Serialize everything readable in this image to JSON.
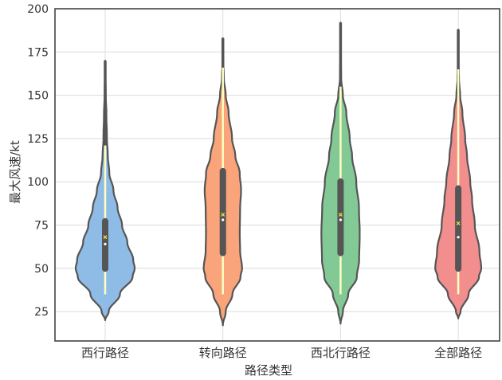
{
  "chart_data": {
    "type": "violin",
    "title": "",
    "xlabel": "路径类型",
    "ylabel": "最大风速/kt",
    "ylim": [
      8,
      200
    ],
    "yticks": [
      25,
      50,
      75,
      100,
      125,
      150,
      175,
      200
    ],
    "grid": true,
    "categories": [
      "西行路径",
      "转向路径",
      "西北行路径",
      "全部路径"
    ],
    "colors": {
      "fills": [
        "#8fbce6",
        "#f9a47a",
        "#82c996",
        "#f28e8e"
      ],
      "outline": "#555555",
      "whisker": "#ffffc0",
      "mean_marker": "#f0e040",
      "median_marker": "#ffffff"
    },
    "series": [
      {
        "name": "西行路径",
        "min": 20,
        "max": 170,
        "whisker_low": 35,
        "whisker_high": 121,
        "q1": 48,
        "q3": 79,
        "median": 64,
        "mean": 68,
        "width_scale": 1.0,
        "density": [
          [
            20,
            0
          ],
          [
            25,
            0.12
          ],
          [
            35,
            0.5
          ],
          [
            45,
            0.93
          ],
          [
            50,
            1.0
          ],
          [
            55,
            0.95
          ],
          [
            65,
            0.75
          ],
          [
            75,
            0.57
          ],
          [
            85,
            0.42
          ],
          [
            95,
            0.28
          ],
          [
            105,
            0.14
          ],
          [
            115,
            0.09
          ],
          [
            125,
            0.06
          ],
          [
            140,
            0.04
          ],
          [
            150,
            0.02
          ],
          [
            160,
            0.01
          ],
          [
            170,
            0
          ]
        ]
      },
      {
        "name": "转向路径",
        "min": 17,
        "max": 183,
        "whisker_low": 35,
        "whisker_high": 166,
        "q1": 57,
        "q3": 108,
        "median": 78,
        "mean": 81,
        "width_scale": 0.65,
        "density": [
          [
            17,
            0
          ],
          [
            25,
            0.15
          ],
          [
            35,
            0.5
          ],
          [
            45,
            0.92
          ],
          [
            50,
            1.0
          ],
          [
            60,
            0.9
          ],
          [
            70,
            0.88
          ],
          [
            85,
            0.9
          ],
          [
            95,
            0.95
          ],
          [
            105,
            0.88
          ],
          [
            115,
            0.65
          ],
          [
            125,
            0.48
          ],
          [
            140,
            0.3
          ],
          [
            150,
            0.15
          ],
          [
            160,
            0.05
          ],
          [
            170,
            0.02
          ],
          [
            183,
            0
          ]
        ]
      },
      {
        "name": "西北行路径",
        "min": 18,
        "max": 192,
        "whisker_low": 35,
        "whisker_high": 155,
        "q1": 57,
        "q3": 102,
        "median": 78,
        "mean": 81,
        "width_scale": 0.65,
        "density": [
          [
            18,
            0
          ],
          [
            25,
            0.12
          ],
          [
            35,
            0.4
          ],
          [
            45,
            0.85
          ],
          [
            55,
            0.97
          ],
          [
            70,
            1.0
          ],
          [
            85,
            0.96
          ],
          [
            100,
            0.82
          ],
          [
            115,
            0.6
          ],
          [
            125,
            0.48
          ],
          [
            140,
            0.3
          ],
          [
            150,
            0.12
          ],
          [
            160,
            0.03
          ],
          [
            175,
            0.01
          ],
          [
            192,
            0
          ]
        ]
      },
      {
        "name": "全部路径",
        "min": 21,
        "max": 188,
        "whisker_low": 35,
        "whisker_high": 165,
        "q1": 48,
        "q3": 98,
        "median": 68,
        "mean": 76,
        "width_scale": 0.78,
        "density": [
          [
            21,
            0
          ],
          [
            25,
            0.1
          ],
          [
            35,
            0.45
          ],
          [
            45,
            0.9
          ],
          [
            50,
            1.0
          ],
          [
            60,
            0.92
          ],
          [
            75,
            0.72
          ],
          [
            90,
            0.6
          ],
          [
            100,
            0.52
          ],
          [
            115,
            0.38
          ],
          [
            125,
            0.3
          ],
          [
            140,
            0.18
          ],
          [
            150,
            0.08
          ],
          [
            160,
            0.03
          ],
          [
            170,
            0.01
          ],
          [
            188,
            0
          ]
        ]
      }
    ]
  }
}
